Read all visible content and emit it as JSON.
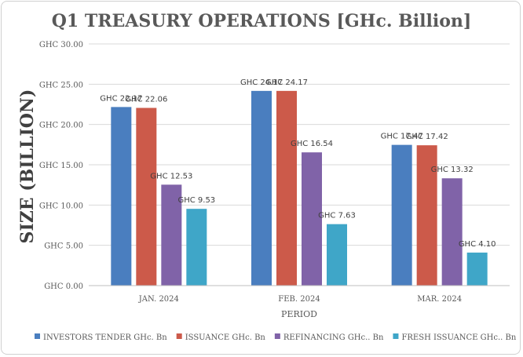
{
  "chart_data": {
    "type": "bar",
    "title": "Q1 TREASURY OPERATIONS [GHc. Billion]",
    "xlabel": "PERIOD",
    "ylabel": "SIZE (BILLION)",
    "categories": [
      "JAN. 2024",
      "FEB. 2024",
      "MAR. 2024"
    ],
    "ylim": [
      0,
      30
    ],
    "yticks": [
      0,
      5,
      10,
      15,
      20,
      25,
      30
    ],
    "ytick_labels": [
      "GHC 0.00",
      "GHC 5.00",
      "GHC 10.00",
      "GHC 15.00",
      "GHC 20.00",
      "GHC 25.00",
      "GHC 30.00"
    ],
    "grid": true,
    "legend_position": "bottom",
    "series": [
      {
        "name": "INVESTORS TENDER  GHc. Bn",
        "color": "#4a7ebf",
        "values": [
          22.17,
          24.17,
          17.47
        ],
        "labels": [
          "GHC 22.17",
          "GHC 24.17",
          "GHC 17.47"
        ]
      },
      {
        "name": "ISSUANCE  GHc. Bn",
        "color": "#cc5a4a",
        "values": [
          22.06,
          24.17,
          17.42
        ],
        "labels": [
          "GHC 22.06",
          "GHC 24.17",
          "GHC 17.42"
        ]
      },
      {
        "name": "REFINANCING GHc.. Bn",
        "color": "#8063a8",
        "values": [
          12.53,
          16.54,
          13.32
        ],
        "labels": [
          "GHC 12.53",
          "GHC 16.54",
          "GHC 13.32"
        ]
      },
      {
        "name": "FRESH ISSUANCE  GHc.. Bn",
        "color": "#3fa6c8",
        "values": [
          9.53,
          7.63,
          4.1
        ],
        "labels": [
          "GHC 9.53",
          "GHC 7.63",
          "GHC 4.10"
        ]
      }
    ]
  }
}
